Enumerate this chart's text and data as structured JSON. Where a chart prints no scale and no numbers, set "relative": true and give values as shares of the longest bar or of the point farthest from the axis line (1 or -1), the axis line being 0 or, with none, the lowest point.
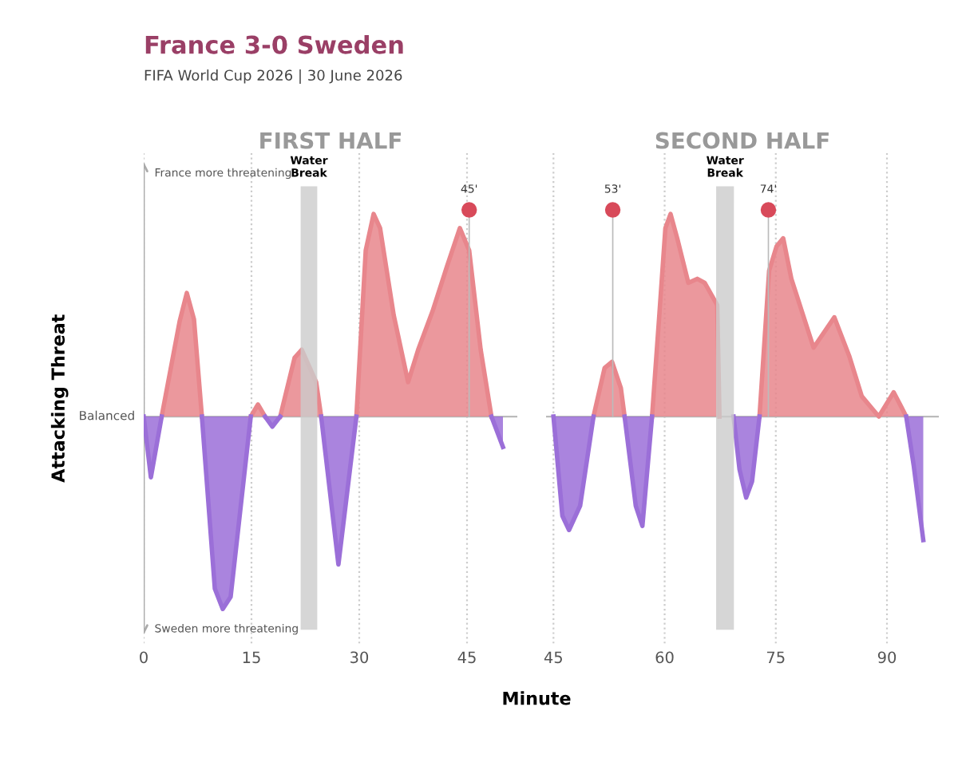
{
  "chart_data": [
    {
      "type": "area",
      "title": "FIRST HALF",
      "xlabel": "Minute",
      "ylabel": "Attacking Threat",
      "relative": true,
      "grid": "x",
      "xlim": [
        0,
        52
      ],
      "xticks": [
        0,
        15,
        30,
        45
      ],
      "annotations": [
        "France 3-0 Sweden",
        "FIFA World Cup 2026 | 30 June 2026",
        "France more threatening",
        "Balanced",
        "Sweden more threatening"
      ],
      "bands": [
        {
          "axis": "x",
          "from": 22,
          "to": 24,
          "label": "Water Break",
          "color": "#cccccc"
        }
      ],
      "ref_lines": [
        {
          "axis": "x",
          "value": 45.3,
          "label": "45'"
        }
      ],
      "series": [
        {
          "color": "#e8868c",
          "x": [
            2.5,
            5.0,
            6.0,
            7.0,
            8.1,
            9.9,
            11.0,
            12.1,
            14.9,
            15.9,
            16.9,
            17.9,
            19.0,
            21.0,
            22.0,
            24.0,
            24.7,
            27.1,
            29.6,
            30.9,
            32.0,
            32.9,
            34.8,
            36.8,
            38.2,
            40.2,
            42.2,
            44.0,
            45.3,
            46.9,
            48.4
          ],
          "values": [
            0,
            0.47,
            0.61,
            0.48,
            0,
            null,
            null,
            null,
            0,
            0.06,
            0,
            null,
            0,
            0.29,
            0.33,
            0.17,
            0,
            null,
            0,
            0.82,
            1.0,
            0.93,
            0.5,
            0.17,
            0.33,
            0.52,
            0.74,
            0.93,
            0.82,
            0.33,
            0
          ]
        },
        {
          "color": "#9b6fd8",
          "x": [
            0,
            1.0,
            2.5,
            5.0,
            6.0,
            7.0,
            8.1,
            9.9,
            11.0,
            12.1,
            14.9,
            15.9,
            16.9,
            17.9,
            19.0,
            21.0,
            22.0,
            24.0,
            24.7,
            27.1,
            29.6,
            30.9,
            32.0,
            32.9,
            34.8,
            36.8,
            38.2,
            40.2,
            42.2,
            44.0,
            45.3,
            46.9,
            48.4,
            50.0
          ],
          "values": [
            0,
            -0.3,
            0,
            null,
            null,
            null,
            0,
            -0.85,
            -0.95,
            -0.89,
            0,
            null,
            0,
            -0.05,
            0,
            null,
            null,
            null,
            0,
            -0.73,
            0,
            null,
            null,
            null,
            null,
            null,
            null,
            null,
            null,
            null,
            null,
            null,
            0,
            -0.15
          ]
        }
      ]
    },
    {
      "type": "area",
      "title": "SECOND HALF",
      "relative": true,
      "grid": "x",
      "xlim": [
        44,
        97
      ],
      "xticks": [
        45,
        60,
        75,
        90
      ],
      "bands": [
        {
          "axis": "x",
          "from": 67.1,
          "to": 69.2,
          "label": "Water Break",
          "color": "#cccccc"
        }
      ],
      "ref_lines": [
        {
          "axis": "x",
          "value": 53,
          "label": "53'"
        },
        {
          "axis": "x",
          "value": 74,
          "label": "74'"
        }
      ],
      "series": [
        {
          "color": "#e8868c",
          "x": [
            50.4,
            51.9,
            52.9,
            54.1,
            54.6,
            56.1,
            57.0,
            58.3,
            59.3,
            60.1,
            60.8,
            61.7,
            63.2,
            64.4,
            65.4,
            67.1,
            67.4,
            69.3,
            70.1,
            71.0,
            71.8,
            72.8,
            74.1,
            75.1,
            76.0,
            77.1,
            80.1,
            82.9,
            84.9,
            86.6,
            88.9,
            90.9,
            91.9,
            92.6
          ],
          "values": [
            0,
            0.24,
            0.27,
            0.14,
            0,
            null,
            null,
            0,
            0.51,
            0.93,
            1.0,
            0.88,
            0.66,
            0.68,
            0.66,
            0.55,
            0,
            null,
            null,
            null,
            null,
            0,
            0.72,
            0.84,
            0.88,
            0.68,
            0.34,
            0.49,
            0.3,
            0.1,
            0,
            0.12,
            0.05,
            0
          ]
        },
        {
          "color": "#9b6fd8",
          "x": [
            45,
            46.2,
            47.1,
            48.6,
            50.4,
            51.9,
            52.9,
            54.1,
            54.6,
            56.1,
            57.0,
            58.3,
            59.3,
            60.1,
            60.8,
            61.7,
            63.2,
            64.4,
            65.4,
            67.1,
            67.4,
            69.3,
            70.1,
            71.0,
            71.8,
            72.8,
            74.1,
            75.1,
            76.0,
            77.1,
            80.1,
            82.9,
            84.9,
            86.6,
            88.9,
            90.9,
            91.9,
            92.6,
            93.6,
            94.9
          ],
          "values": [
            0,
            -0.49,
            -0.56,
            -0.44,
            0,
            null,
            null,
            null,
            0,
            -0.44,
            -0.54,
            0,
            null,
            null,
            null,
            null,
            null,
            null,
            null,
            null,
            null,
            0,
            -0.26,
            -0.4,
            -0.32,
            0,
            null,
            null,
            null,
            null,
            null,
            null,
            null,
            null,
            null,
            null,
            null,
            0,
            -0.24,
            -0.61
          ]
        }
      ]
    }
  ]
}
